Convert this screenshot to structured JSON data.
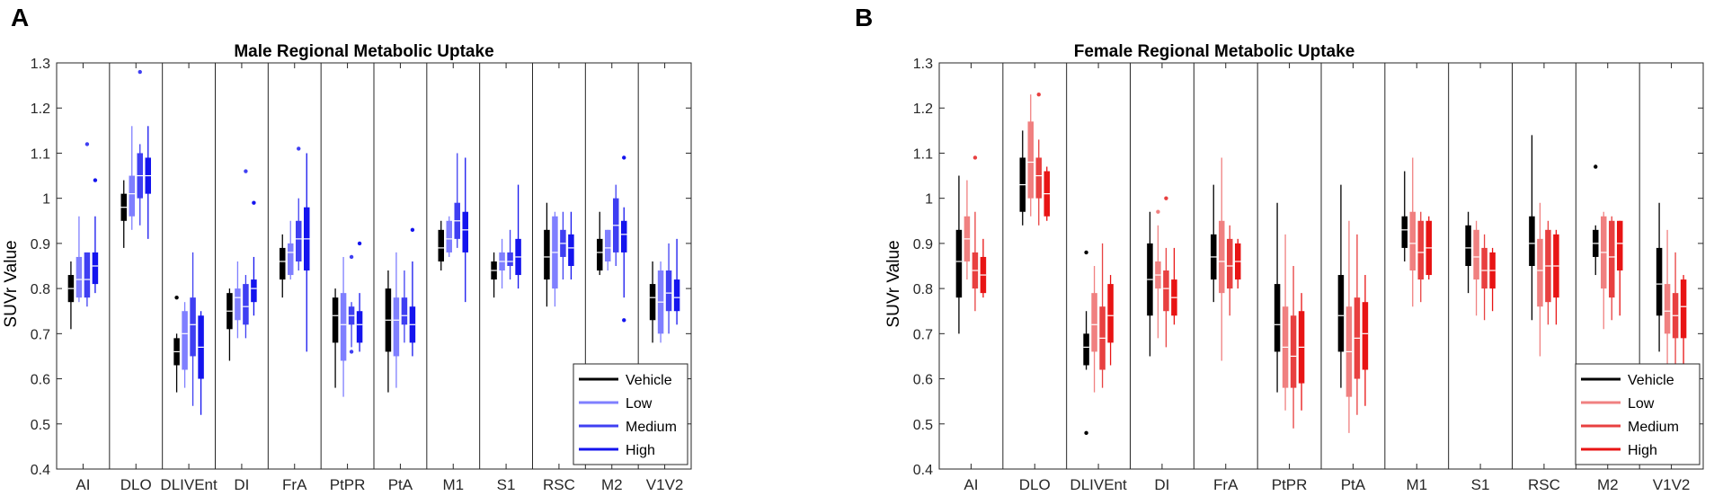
{
  "panel_labels": [
    "A",
    "B"
  ],
  "legend_labels": [
    "Vehicle",
    "Low",
    "Medium",
    "High"
  ],
  "colors": {
    "male": [
      "#000000",
      "#7f7fff",
      "#3f3ff2",
      "#1414ee"
    ],
    "female": [
      "#000000",
      "#f08080",
      "#e84040",
      "#e81414"
    ]
  },
  "chart_data": [
    {
      "type": "box",
      "title": "Male Regional Metabolic Uptake",
      "xlabel": "",
      "ylabel": "SUVr Value",
      "ylim": [
        0.4,
        1.3
      ],
      "yticks": [
        "0.4",
        "0.5",
        "0.6",
        "0.7",
        "0.8",
        "0.9",
        "1",
        "1.1",
        "1.2",
        "1.3"
      ],
      "categories": [
        "AI",
        "DLO",
        "DLIVEnt",
        "DI",
        "FrA",
        "PtPR",
        "PtA",
        "M1",
        "S1",
        "RSC",
        "M2",
        "V1V2"
      ],
      "series": [
        {
          "name": "Vehicle",
          "boxes": [
            [
              0.71,
              0.77,
              0.8,
              0.83,
              0.86
            ],
            [
              0.89,
              0.95,
              0.98,
              1.01,
              1.04
            ],
            [
              0.57,
              0.63,
              0.66,
              0.69,
              0.7
            ],
            [
              0.64,
              0.71,
              0.75,
              0.79,
              0.8
            ],
            [
              0.78,
              0.82,
              0.86,
              0.89,
              0.92
            ],
            [
              0.58,
              0.68,
              0.74,
              0.78,
              0.8
            ],
            [
              0.57,
              0.66,
              0.73,
              0.8,
              0.84
            ],
            [
              0.84,
              0.86,
              0.89,
              0.93,
              0.95
            ],
            [
              0.78,
              0.82,
              0.84,
              0.86,
              0.88
            ],
            [
              0.76,
              0.82,
              0.87,
              0.93,
              0.99
            ],
            [
              0.83,
              0.84,
              0.88,
              0.91,
              0.97
            ],
            [
              0.68,
              0.73,
              0.78,
              0.81,
              0.86
            ]
          ]
        },
        {
          "name": "Low",
          "boxes": [
            [
              0.77,
              0.78,
              0.82,
              0.87,
              0.96
            ],
            [
              0.93,
              0.96,
              1.01,
              1.05,
              1.16
            ],
            [
              0.58,
              0.62,
              0.7,
              0.75,
              0.77
            ],
            [
              0.69,
              0.73,
              0.78,
              0.8,
              0.86
            ],
            [
              0.82,
              0.83,
              0.88,
              0.9,
              0.95
            ],
            [
              0.56,
              0.64,
              0.72,
              0.79,
              0.87
            ],
            [
              0.58,
              0.65,
              0.73,
              0.78,
              0.88
            ],
            [
              0.87,
              0.88,
              0.91,
              0.95,
              0.96
            ],
            [
              0.8,
              0.84,
              0.86,
              0.88,
              0.91
            ],
            [
              0.76,
              0.8,
              0.88,
              0.96,
              0.97
            ],
            [
              0.84,
              0.86,
              0.89,
              0.93,
              0.93
            ],
            [
              0.68,
              0.7,
              0.77,
              0.84,
              0.86
            ]
          ]
        },
        {
          "name": "Medium",
          "boxes": [
            [
              0.76,
              0.78,
              0.82,
              0.88,
              0.88
            ],
            [
              0.94,
              1.0,
              1.05,
              1.1,
              1.12
            ],
            [
              0.54,
              0.65,
              0.72,
              0.78,
              0.88
            ],
            [
              0.69,
              0.72,
              0.76,
              0.81,
              0.83
            ],
            [
              0.84,
              0.86,
              0.91,
              0.95,
              1.0
            ],
            [
              0.67,
              0.72,
              0.74,
              0.76,
              0.77
            ],
            [
              0.68,
              0.72,
              0.74,
              0.78,
              0.84
            ],
            [
              0.89,
              0.91,
              0.95,
              0.99,
              1.1
            ],
            [
              0.82,
              0.85,
              0.86,
              0.88,
              0.93
            ],
            [
              0.82,
              0.87,
              0.9,
              0.93,
              0.97
            ],
            [
              0.85,
              0.88,
              0.94,
              1.0,
              1.03
            ],
            [
              0.7,
              0.75,
              0.79,
              0.84,
              0.9
            ]
          ]
        },
        {
          "name": "High",
          "boxes": [
            [
              0.79,
              0.81,
              0.85,
              0.88,
              0.96
            ],
            [
              0.91,
              1.01,
              1.05,
              1.09,
              1.16
            ],
            [
              0.52,
              0.6,
              0.67,
              0.74,
              0.75
            ],
            [
              0.74,
              0.77,
              0.8,
              0.82,
              0.87
            ],
            [
              0.66,
              0.84,
              0.91,
              0.98,
              1.1
            ],
            [
              0.66,
              0.68,
              0.72,
              0.75,
              0.79
            ],
            [
              0.65,
              0.68,
              0.72,
              0.76,
              0.86
            ],
            [
              0.77,
              0.88,
              0.93,
              0.97,
              1.09
            ],
            [
              0.8,
              0.83,
              0.87,
              0.91,
              1.03
            ],
            [
              0.82,
              0.85,
              0.89,
              0.92,
              0.97
            ],
            [
              0.78,
              0.88,
              0.92,
              0.95,
              0.98
            ],
            [
              0.72,
              0.75,
              0.78,
              0.82,
              0.91
            ]
          ]
        }
      ],
      "outliers": [
        {
          "category": "AI",
          "series": "Medium",
          "value": 1.12
        },
        {
          "category": "AI",
          "series": "High",
          "value": 1.04
        },
        {
          "category": "DLO",
          "series": "Medium",
          "value": 1.28
        },
        {
          "category": "DLIVEnt",
          "series": "Vehicle",
          "value": 0.78
        },
        {
          "category": "DI",
          "series": "Medium",
          "value": 1.06
        },
        {
          "category": "DI",
          "series": "High",
          "value": 0.99
        },
        {
          "category": "FrA",
          "series": "Medium",
          "value": 1.11
        },
        {
          "category": "PtPR",
          "series": "Low",
          "value": 0.65
        },
        {
          "category": "PtPR",
          "series": "Medium",
          "value": 0.87
        },
        {
          "category": "PtPR",
          "series": "Medium",
          "value": 0.66
        },
        {
          "category": "PtPR",
          "series": "High",
          "value": 0.9
        },
        {
          "category": "PtA",
          "series": "High",
          "value": 0.93
        },
        {
          "category": "M2",
          "series": "High",
          "value": 1.09
        },
        {
          "category": "M2",
          "series": "High",
          "value": 0.73
        }
      ],
      "legend": "bottom-right"
    },
    {
      "type": "box",
      "title": "Female Regional Metabolic Uptake",
      "xlabel": "",
      "ylabel": "SUVr Value",
      "ylim": [
        0.4,
        1.3
      ],
      "yticks": [
        "0.4",
        "0.5",
        "0.6",
        "0.7",
        "0.8",
        "0.9",
        "1",
        "1.1",
        "1.2",
        "1.3"
      ],
      "categories": [
        "AI",
        "DLO",
        "DLIVEnt",
        "DI",
        "FrA",
        "PtPR",
        "PtA",
        "M1",
        "S1",
        "RSC",
        "M2",
        "V1V2"
      ],
      "series": [
        {
          "name": "Vehicle",
          "boxes": [
            [
              0.7,
              0.78,
              0.86,
              0.93,
              1.05
            ],
            [
              0.94,
              0.97,
              1.03,
              1.09,
              1.15
            ],
            [
              0.62,
              0.63,
              0.67,
              0.7,
              0.75
            ],
            [
              0.65,
              0.74,
              0.82,
              0.9,
              0.97
            ],
            [
              0.77,
              0.82,
              0.87,
              0.92,
              1.03
            ],
            [
              0.57,
              0.66,
              0.72,
              0.81,
              0.99
            ],
            [
              0.58,
              0.66,
              0.74,
              0.83,
              1.03
            ],
            [
              0.86,
              0.89,
              0.93,
              0.96,
              1.06
            ],
            [
              0.79,
              0.85,
              0.89,
              0.94,
              0.97
            ],
            [
              0.73,
              0.85,
              0.9,
              0.96,
              1.14
            ],
            [
              0.83,
              0.87,
              0.9,
              0.93,
              0.94
            ],
            [
              0.66,
              0.74,
              0.81,
              0.89,
              0.99
            ]
          ]
        },
        {
          "name": "Low",
          "boxes": [
            [
              0.82,
              0.86,
              0.91,
              0.96,
              1.04
            ],
            [
              0.96,
              1.0,
              1.08,
              1.17,
              1.23
            ],
            [
              0.57,
              0.66,
              0.72,
              0.79,
              0.85
            ],
            [
              0.69,
              0.8,
              0.83,
              0.86,
              0.94
            ],
            [
              0.64,
              0.79,
              0.86,
              0.95,
              1.09
            ],
            [
              0.53,
              0.58,
              0.67,
              0.76,
              0.92
            ],
            [
              0.48,
              0.56,
              0.66,
              0.76,
              0.95
            ],
            [
              0.76,
              0.84,
              0.9,
              0.97,
              1.09
            ],
            [
              0.74,
              0.82,
              0.87,
              0.93,
              0.95
            ],
            [
              0.65,
              0.76,
              0.84,
              0.91,
              0.99
            ],
            [
              0.71,
              0.8,
              0.88,
              0.96,
              0.97
            ],
            [
              0.63,
              0.7,
              0.75,
              0.81,
              0.93
            ]
          ]
        },
        {
          "name": "Medium",
          "boxes": [
            [
              0.75,
              0.8,
              0.84,
              0.88,
              0.97
            ],
            [
              0.94,
              1.0,
              1.05,
              1.09,
              1.13
            ],
            [
              0.58,
              0.62,
              0.69,
              0.76,
              0.9
            ],
            [
              0.67,
              0.75,
              0.8,
              0.84,
              0.89
            ],
            [
              0.74,
              0.8,
              0.85,
              0.91,
              0.94
            ],
            [
              0.49,
              0.58,
              0.65,
              0.74,
              0.85
            ],
            [
              0.52,
              0.6,
              0.69,
              0.78,
              0.92
            ],
            [
              0.77,
              0.82,
              0.88,
              0.95,
              0.97
            ],
            [
              0.73,
              0.8,
              0.84,
              0.89,
              0.92
            ],
            [
              0.72,
              0.77,
              0.85,
              0.93,
              0.95
            ],
            [
              0.73,
              0.78,
              0.87,
              0.95,
              0.96
            ],
            [
              0.6,
              0.69,
              0.74,
              0.79,
              0.88
            ]
          ]
        },
        {
          "name": "High",
          "boxes": [
            [
              0.78,
              0.79,
              0.83,
              0.87,
              0.91
            ],
            [
              0.95,
              0.96,
              1.01,
              1.06,
              1.07
            ],
            [
              0.63,
              0.68,
              0.74,
              0.81,
              0.83
            ],
            [
              0.72,
              0.74,
              0.78,
              0.82,
              0.89
            ],
            [
              0.8,
              0.82,
              0.86,
              0.9,
              0.91
            ],
            [
              0.53,
              0.59,
              0.67,
              0.75,
              0.79
            ],
            [
              0.54,
              0.62,
              0.7,
              0.77,
              0.83
            ],
            [
              0.82,
              0.83,
              0.89,
              0.95,
              0.96
            ],
            [
              0.75,
              0.8,
              0.84,
              0.88,
              0.89
            ],
            [
              0.72,
              0.78,
              0.85,
              0.92,
              0.93
            ],
            [
              0.74,
              0.84,
              0.9,
              0.95,
              0.95
            ],
            [
              0.63,
              0.69,
              0.76,
              0.82,
              0.83
            ]
          ]
        }
      ],
      "outliers": [
        {
          "category": "AI",
          "series": "Medium",
          "value": 1.09
        },
        {
          "category": "DLO",
          "series": "Medium",
          "value": 1.23
        },
        {
          "category": "DLIVEnt",
          "series": "Vehicle",
          "value": 0.88
        },
        {
          "category": "DLIVEnt",
          "series": "Vehicle",
          "value": 0.48
        },
        {
          "category": "DI",
          "series": "Low",
          "value": 0.97
        },
        {
          "category": "DI",
          "series": "Medium",
          "value": 1.0
        },
        {
          "category": "M2",
          "series": "Vehicle",
          "value": 1.07
        }
      ],
      "legend": "bottom-right"
    }
  ]
}
